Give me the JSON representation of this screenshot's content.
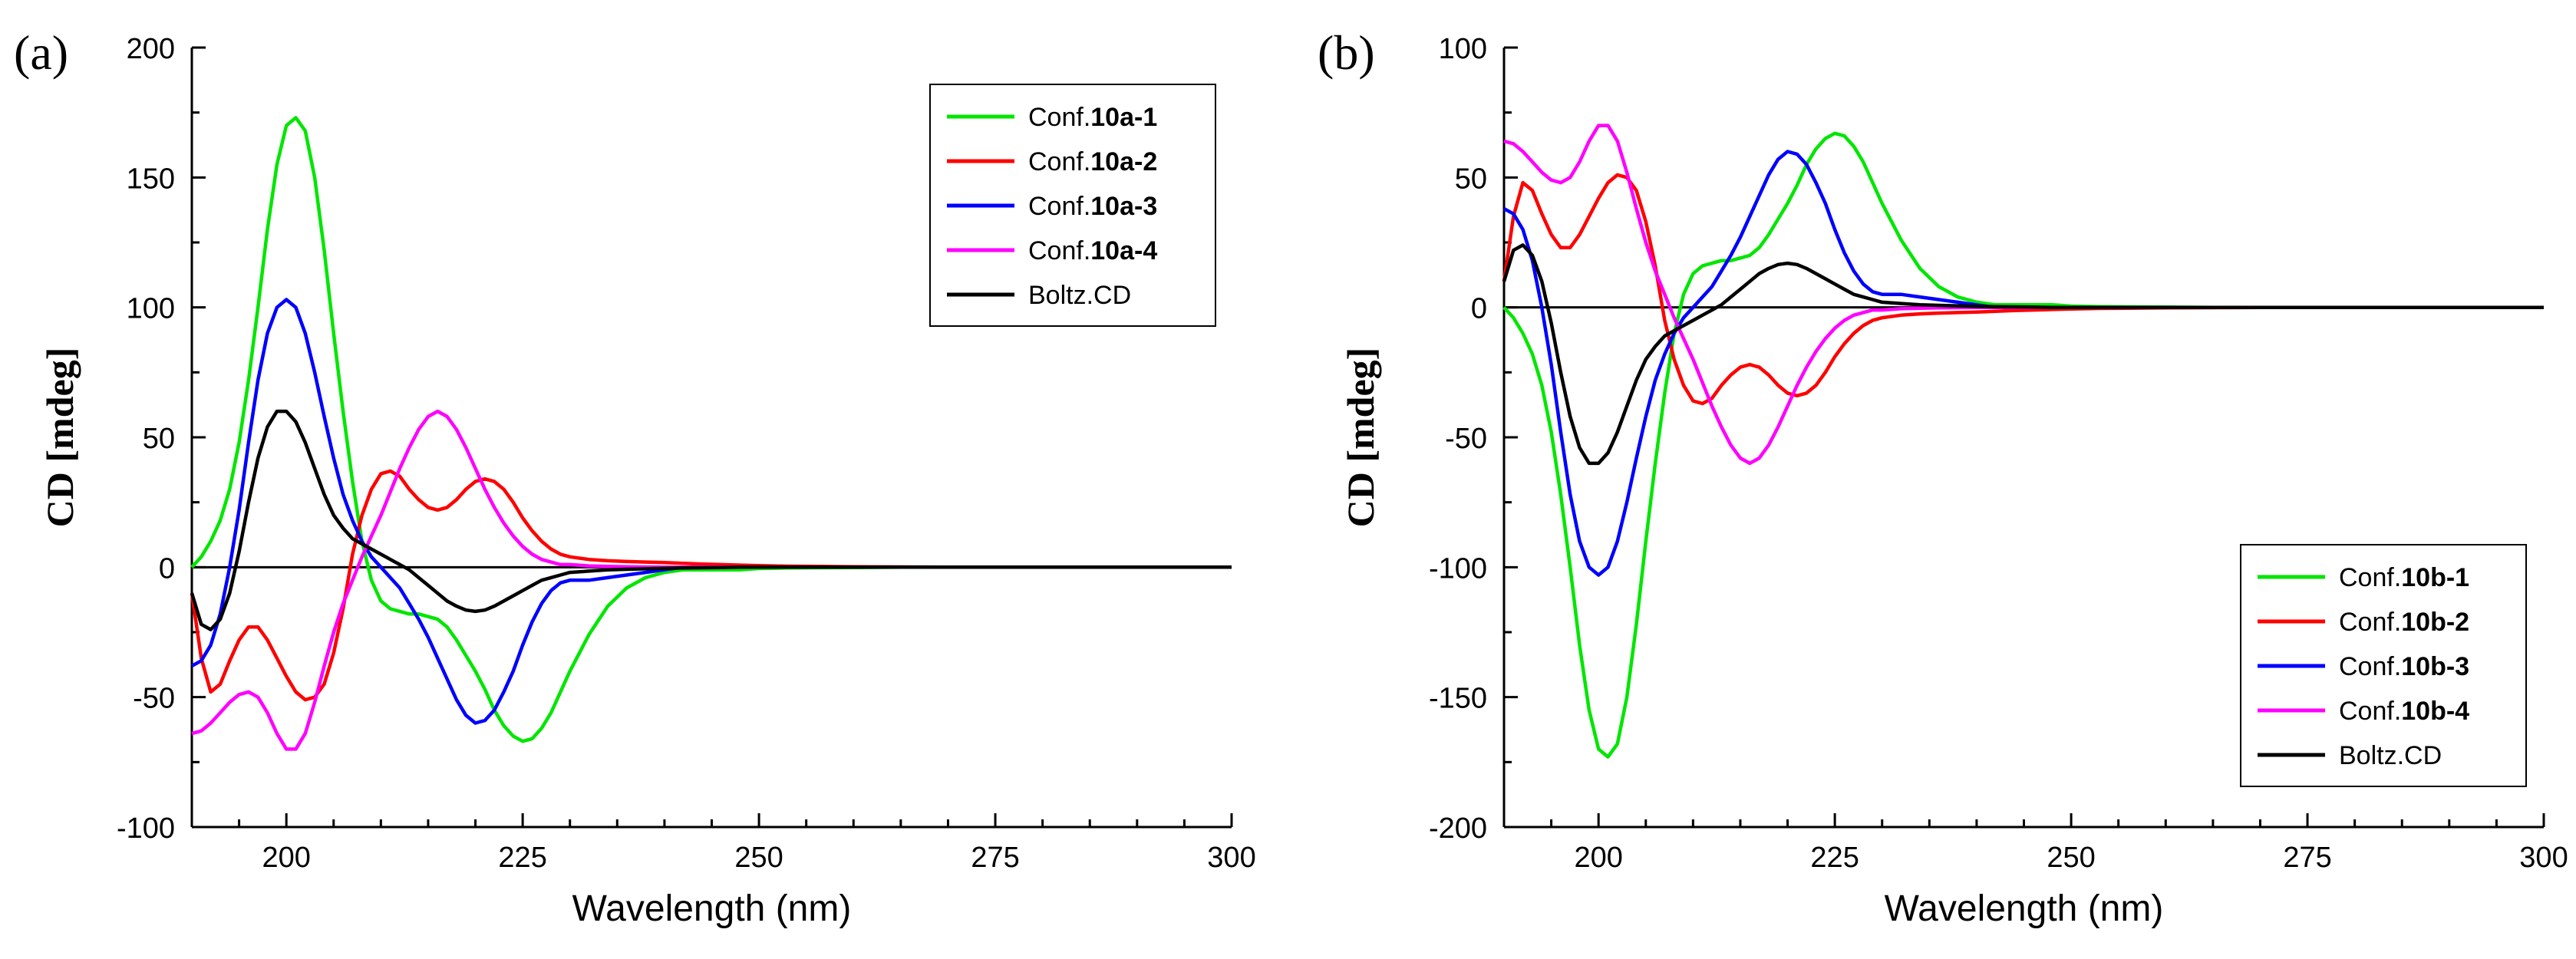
{
  "chart_data": [
    {
      "panel": "(a)",
      "type": "line",
      "xlabel": "Wavelength (nm)",
      "ylabel": "CD [mdeg]",
      "xlim": [
        190,
        300
      ],
      "ylim": [
        -100,
        200
      ],
      "xticks": [
        200,
        225,
        250,
        275,
        300
      ],
      "yticks": [
        -100,
        -50,
        0,
        50,
        100,
        150,
        200
      ],
      "x_tick_labels": [
        "200",
        "225",
        "250",
        "275",
        "300"
      ],
      "y_tick_labels": [
        "-100",
        "-50",
        "0",
        "50",
        "100",
        "150",
        "200"
      ],
      "legend_position": "top-right",
      "zero_line": true,
      "x": [
        190,
        191,
        192,
        193,
        194,
        195,
        196,
        197,
        198,
        199,
        200,
        201,
        202,
        203,
        204,
        205,
        206,
        207,
        208,
        209,
        210,
        211,
        212,
        213,
        214,
        215,
        216,
        217,
        218,
        219,
        220,
        221,
        222,
        223,
        224,
        225,
        226,
        227,
        228,
        229,
        230,
        232,
        234,
        236,
        238,
        240,
        242,
        244,
        246,
        248,
        250,
        253,
        256,
        260,
        265,
        270,
        275,
        280,
        290,
        300
      ],
      "series": [
        {
          "name": "Conf.10a-1",
          "prefix": "Conf.",
          "bold": "10a-1",
          "color": "#00e600",
          "values": [
            0,
            4,
            10,
            18,
            30,
            48,
            72,
            100,
            130,
            155,
            170,
            173,
            168,
            150,
            122,
            90,
            60,
            33,
            10,
            -5,
            -13,
            -16,
            -17,
            -18,
            -18,
            -19,
            -20,
            -23,
            -28,
            -34,
            -40,
            -47,
            -55,
            -61,
            -65,
            -67,
            -66,
            -62,
            -56,
            -48,
            -40,
            -26,
            -15,
            -8,
            -4,
            -2,
            -1,
            -1,
            -1,
            -1,
            -0.5,
            -0.3,
            -0.2,
            -0.1,
            0,
            0,
            0,
            0,
            0,
            0
          ]
        },
        {
          "name": "Conf.10a-2",
          "prefix": "Conf.",
          "bold": "10a-2",
          "color": "#ff0000",
          "values": [
            -10,
            -35,
            -48,
            -45,
            -36,
            -28,
            -23,
            -23,
            -28,
            -35,
            -42,
            -48,
            -51,
            -50,
            -45,
            -33,
            -16,
            5,
            20,
            30,
            36,
            37,
            35,
            30,
            26,
            23,
            22,
            23,
            26,
            30,
            33,
            34,
            33,
            30,
            25,
            19,
            14,
            10,
            7,
            5,
            4,
            3,
            2.5,
            2.2,
            2,
            1.8,
            1.5,
            1.2,
            1,
            0.8,
            0.6,
            0.4,
            0.3,
            0.2,
            0.1,
            0,
            0,
            0,
            0,
            0
          ]
        },
        {
          "name": "Conf.10a-3",
          "prefix": "Conf.",
          "bold": "10a-3",
          "color": "#0000ff",
          "values": [
            -38,
            -36,
            -30,
            -18,
            0,
            22,
            48,
            72,
            90,
            100,
            103,
            100,
            90,
            75,
            58,
            42,
            28,
            18,
            10,
            4,
            0,
            -4,
            -8,
            -14,
            -20,
            -27,
            -35,
            -43,
            -51,
            -57,
            -60,
            -59,
            -55,
            -48,
            -40,
            -30,
            -21,
            -14,
            -9,
            -6,
            -5,
            -5,
            -4,
            -3,
            -2,
            -1,
            0,
            0,
            0,
            0,
            0,
            0,
            0,
            0,
            0,
            0,
            0,
            0,
            0,
            0
          ]
        },
        {
          "name": "Conf.10a-4",
          "prefix": "Conf.",
          "bold": "10a-4",
          "color": "#ff00ff",
          "values": [
            -64,
            -63,
            -60,
            -56,
            -52,
            -49,
            -48,
            -50,
            -56,
            -64,
            -70,
            -70,
            -64,
            -52,
            -38,
            -25,
            -14,
            -5,
            4,
            12,
            20,
            29,
            38,
            46,
            53,
            58,
            60,
            58,
            53,
            46,
            38,
            30,
            23,
            17,
            12,
            8,
            5,
            3,
            2,
            1,
            1,
            0.5,
            0.3,
            0.2,
            0.1,
            0,
            0,
            0,
            0,
            0,
            0,
            0,
            0,
            0,
            0,
            0,
            0,
            0,
            0,
            0
          ]
        },
        {
          "name": "Boltz.CD",
          "prefix": "Boltz.CD",
          "bold": "",
          "color": "#000000",
          "values": [
            -10,
            -22,
            -24,
            -20,
            -10,
            6,
            25,
            42,
            54,
            60,
            60,
            56,
            48,
            38,
            28,
            20,
            15,
            11,
            9,
            7,
            5,
            3,
            1,
            -1,
            -4,
            -7,
            -10,
            -13,
            -15,
            -16.5,
            -17,
            -16.5,
            -15,
            -13,
            -11,
            -9,
            -7,
            -5,
            -4,
            -3,
            -2,
            -1.5,
            -1,
            -0.8,
            -0.6,
            -0.4,
            -0.3,
            -0.2,
            -0.1,
            0,
            0,
            0,
            0,
            0,
            0,
            0,
            0,
            0,
            0,
            0
          ]
        }
      ]
    },
    {
      "panel": "(b)",
      "type": "line",
      "xlabel": "Wavelength (nm)",
      "ylabel": "CD [mdeg]",
      "xlim": [
        190,
        300
      ],
      "ylim": [
        -200,
        100
      ],
      "xticks": [
        200,
        225,
        250,
        275,
        300
      ],
      "yticks": [
        -200,
        -150,
        -100,
        -50,
        0,
        50,
        100
      ],
      "x_tick_labels": [
        "200",
        "225",
        "250",
        "275",
        "300"
      ],
      "y_tick_labels": [
        "-200",
        "-150",
        "-100",
        "-50",
        "0",
        "50",
        "100"
      ],
      "legend_position": "bottom-right",
      "zero_line": true,
      "x": [
        190,
        191,
        192,
        193,
        194,
        195,
        196,
        197,
        198,
        199,
        200,
        201,
        202,
        203,
        204,
        205,
        206,
        207,
        208,
        209,
        210,
        211,
        212,
        213,
        214,
        215,
        216,
        217,
        218,
        219,
        220,
        221,
        222,
        223,
        224,
        225,
        226,
        227,
        228,
        229,
        230,
        232,
        234,
        236,
        238,
        240,
        242,
        244,
        246,
        248,
        250,
        253,
        256,
        260,
        265,
        270,
        275,
        280,
        290,
        300
      ],
      "series": [
        {
          "name": "Conf.10b-1",
          "prefix": "Conf.",
          "bold": "10b-1",
          "color": "#00e600",
          "values": [
            0,
            -4,
            -10,
            -18,
            -30,
            -48,
            -72,
            -100,
            -130,
            -155,
            -170,
            -173,
            -168,
            -150,
            -122,
            -90,
            -60,
            -33,
            -10,
            5,
            13,
            16,
            17,
            18,
            18,
            19,
            20,
            23,
            28,
            34,
            40,
            47,
            55,
            61,
            65,
            67,
            66,
            62,
            56,
            48,
            40,
            26,
            15,
            8,
            4,
            2,
            1,
            1,
            1,
            1,
            0.5,
            0.3,
            0.2,
            0.1,
            0,
            0,
            0,
            0,
            0,
            0
          ]
        },
        {
          "name": "Conf.10b-2",
          "prefix": "Conf.",
          "bold": "10b-2",
          "color": "#ff0000",
          "values": [
            10,
            35,
            48,
            45,
            36,
            28,
            23,
            23,
            28,
            35,
            42,
            48,
            51,
            50,
            45,
            33,
            16,
            -5,
            -20,
            -30,
            -36,
            -37,
            -35,
            -30,
            -26,
            -23,
            -22,
            -23,
            -26,
            -30,
            -33,
            -34,
            -33,
            -30,
            -25,
            -19,
            -14,
            -10,
            -7,
            -5,
            -4,
            -3,
            -2.5,
            -2.2,
            -2,
            -1.8,
            -1.5,
            -1.2,
            -1,
            -0.8,
            -0.6,
            -0.4,
            -0.3,
            -0.2,
            -0.1,
            0,
            0,
            0,
            0,
            0
          ]
        },
        {
          "name": "Conf.10b-3",
          "prefix": "Conf.",
          "bold": "10b-3",
          "color": "#0000ff",
          "values": [
            38,
            36,
            30,
            18,
            0,
            -22,
            -48,
            -72,
            -90,
            -100,
            -103,
            -100,
            -90,
            -75,
            -58,
            -42,
            -28,
            -18,
            -10,
            -4,
            0,
            4,
            8,
            14,
            20,
            27,
            35,
            43,
            51,
            57,
            60,
            59,
            55,
            48,
            40,
            30,
            21,
            14,
            9,
            6,
            5,
            5,
            4,
            3,
            2,
            1,
            0,
            0,
            0,
            0,
            0,
            0,
            0,
            0,
            0,
            0,
            0,
            0,
            0,
            0
          ]
        },
        {
          "name": "Conf.10b-4",
          "prefix": "Conf.",
          "bold": "10b-4",
          "color": "#ff00ff",
          "values": [
            64,
            63,
            60,
            56,
            52,
            49,
            48,
            50,
            56,
            64,
            70,
            70,
            64,
            52,
            38,
            25,
            14,
            5,
            -4,
            -12,
            -20,
            -29,
            -38,
            -46,
            -53,
            -58,
            -60,
            -58,
            -53,
            -46,
            -38,
            -30,
            -23,
            -17,
            -12,
            -8,
            -5,
            -3,
            -2,
            -1,
            -1,
            -0.5,
            -0.3,
            -0.2,
            -0.1,
            0,
            0,
            0,
            0,
            0,
            0,
            0,
            0,
            0,
            0,
            0,
            0,
            0,
            0,
            0
          ]
        },
        {
          "name": "Boltz.CD",
          "prefix": "Boltz.CD",
          "bold": "",
          "color": "#000000",
          "values": [
            10,
            22,
            24,
            20,
            10,
            -6,
            -25,
            -42,
            -54,
            -60,
            -60,
            -56,
            -48,
            -38,
            -28,
            -20,
            -15,
            -11,
            -9,
            -7,
            -5,
            -3,
            -1,
            1,
            4,
            7,
            10,
            13,
            15,
            16.5,
            17,
            16.5,
            15,
            13,
            11,
            9,
            7,
            5,
            4,
            3,
            2,
            1.5,
            1,
            0.8,
            0.6,
            0.4,
            0.3,
            0.2,
            0.1,
            0,
            0,
            0,
            0,
            0,
            0,
            0,
            0,
            0,
            0,
            0
          ]
        }
      ]
    }
  ]
}
